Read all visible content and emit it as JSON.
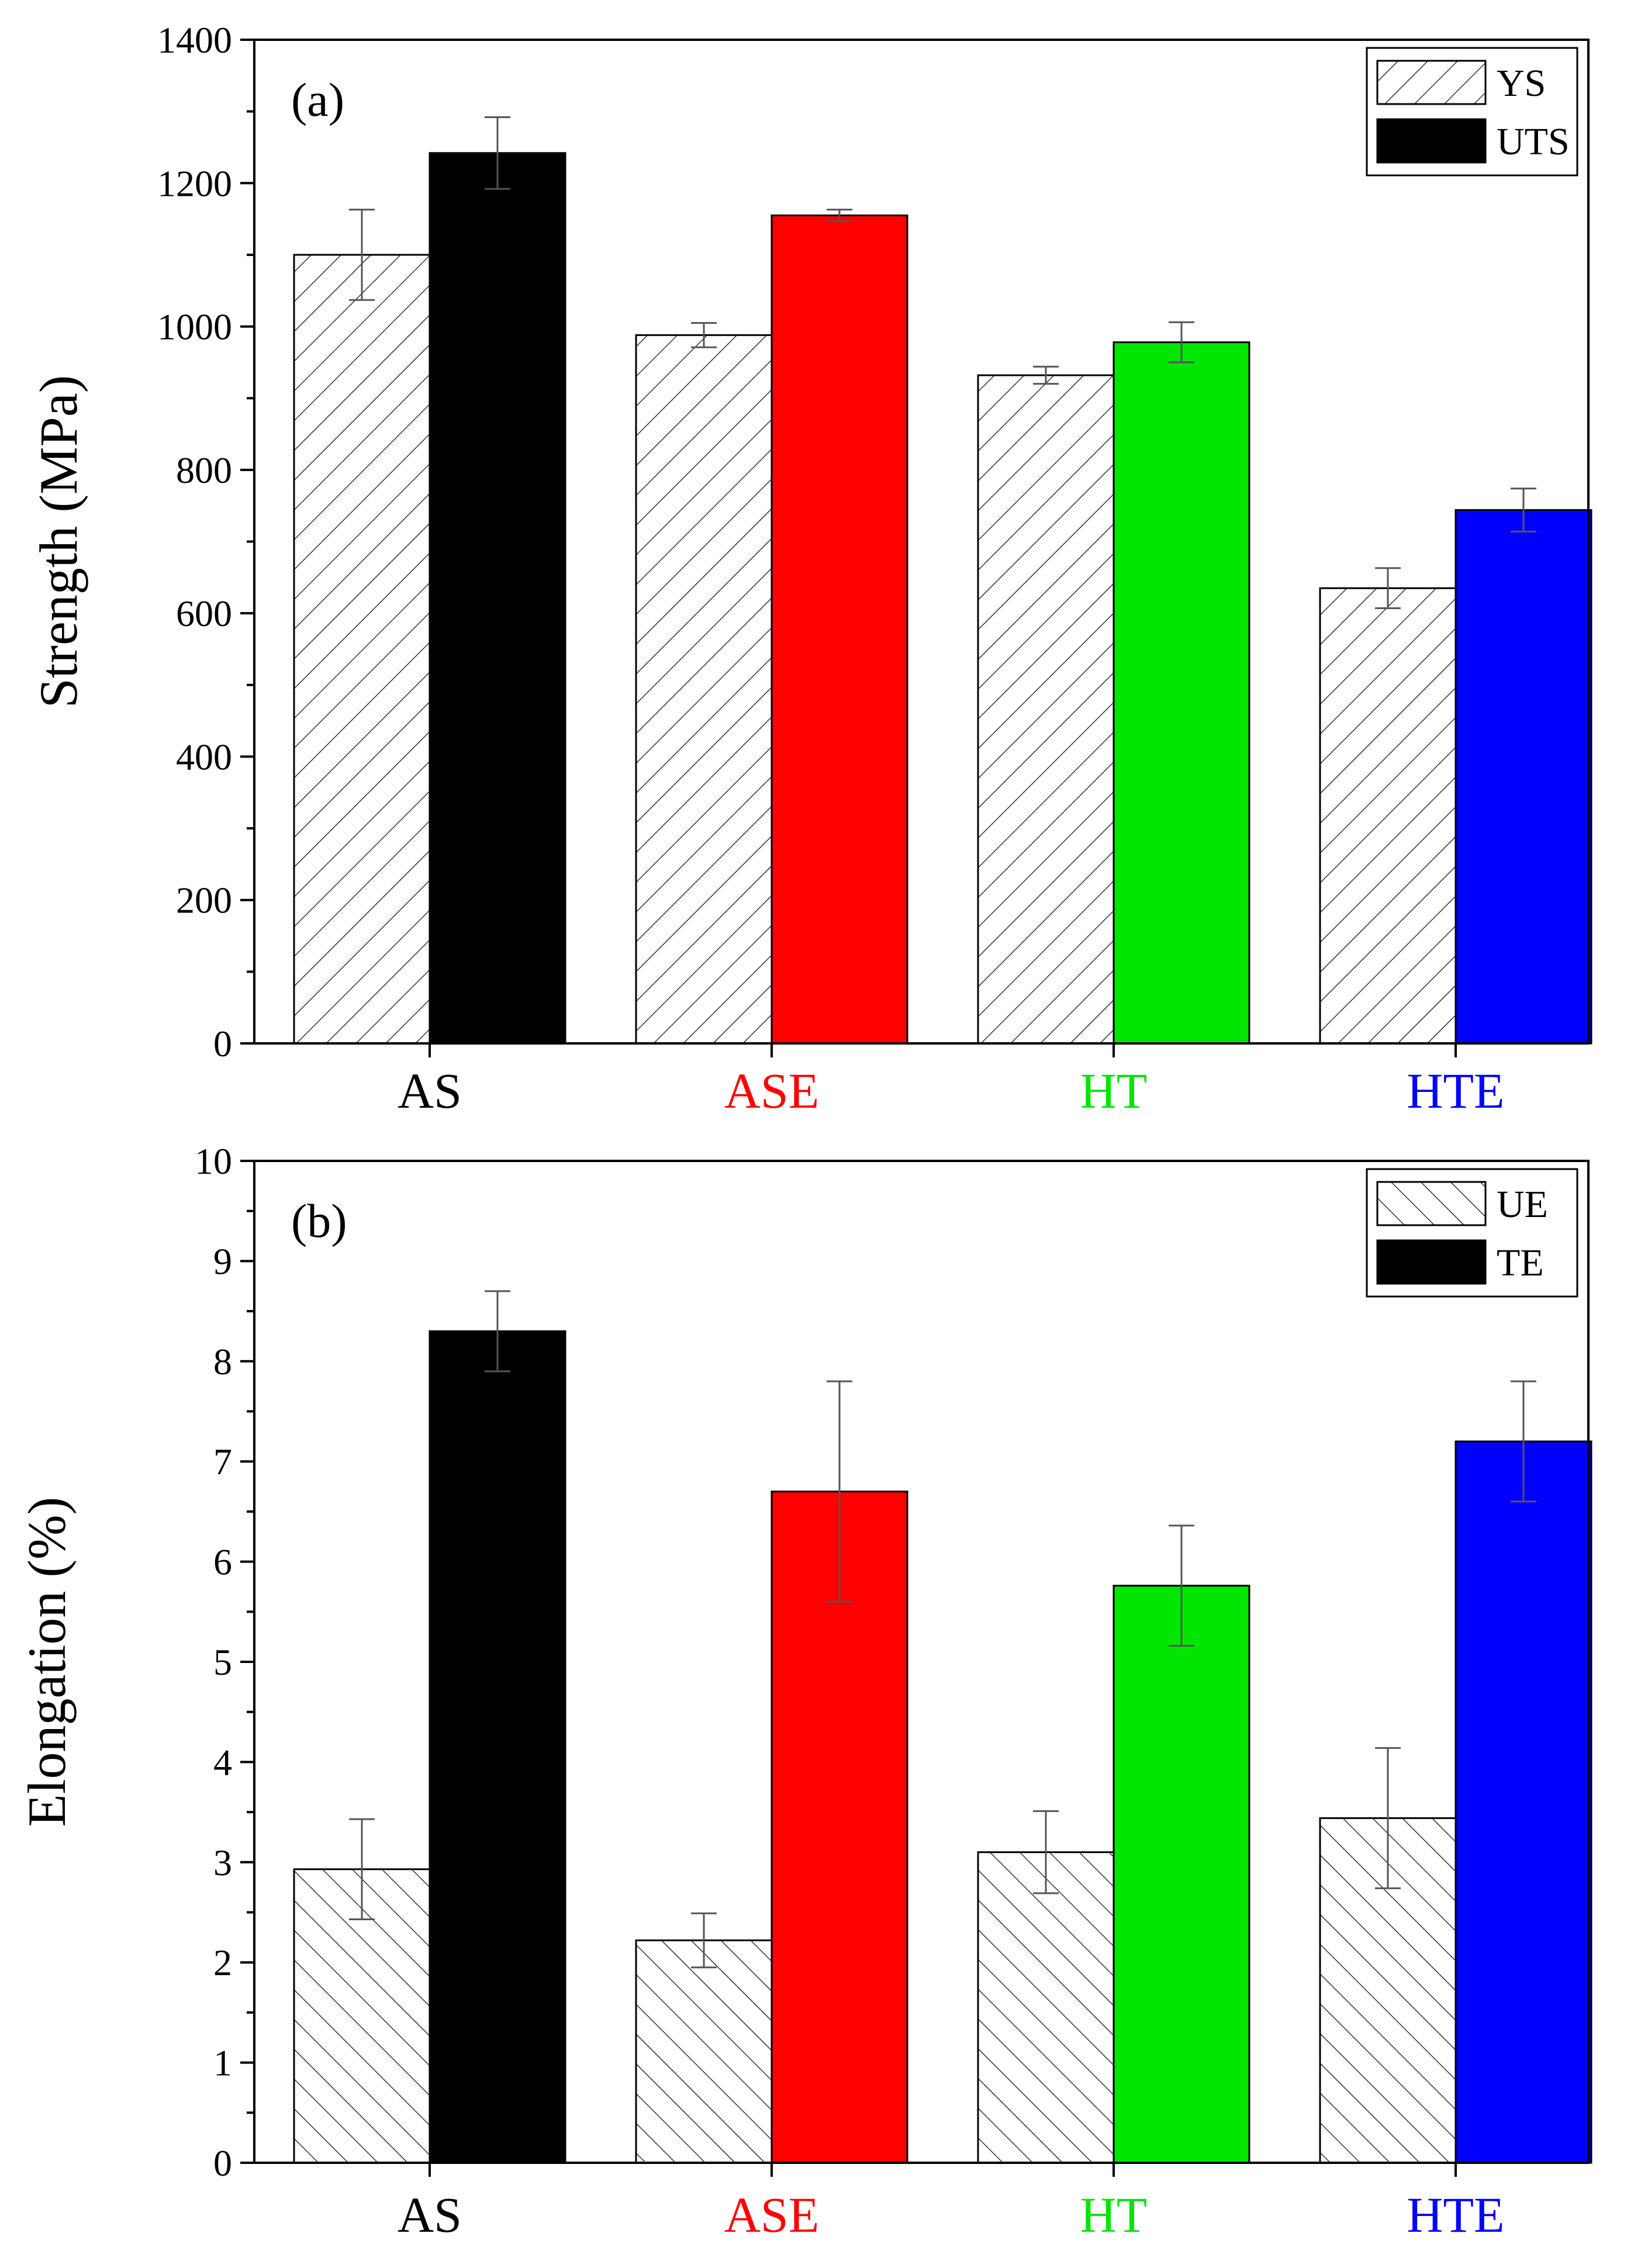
{
  "colors": {
    "axis": "#000000",
    "hatch": "#333333",
    "error_bar": "#555555",
    "bar_edge": "#000000"
  },
  "chart_data": [
    {
      "type": "bar",
      "panel_label": "(a)",
      "ylabel": "Strength (MPa)",
      "xlabel": "",
      "ylim": [
        0,
        1400
      ],
      "yticks": [
        0,
        200,
        400,
        600,
        800,
        1000,
        1200,
        1400
      ],
      "grid": false,
      "legend_position": "top-right",
      "categories": [
        "AS",
        "ASE",
        "HT",
        "HTE"
      ],
      "category_colors": [
        "#000000",
        "#ff0000",
        "#00e600",
        "#0000ff"
      ],
      "series": [
        {
          "name": "YS",
          "style": "hatch-forward",
          "values": [
            1100,
            988,
            932,
            635
          ],
          "errors": [
            63,
            17,
            12,
            28
          ]
        },
        {
          "name": "UTS",
          "style": "solid",
          "values": [
            1242,
            1155,
            978,
            744
          ],
          "errors": [
            50,
            8,
            28,
            30
          ]
        }
      ]
    },
    {
      "type": "bar",
      "panel_label": "(b)",
      "ylabel": "Elongation (%)",
      "xlabel": "",
      "ylim": [
        0,
        10
      ],
      "yticks": [
        0,
        1,
        2,
        3,
        4,
        5,
        6,
        7,
        8,
        9,
        10
      ],
      "grid": false,
      "legend_position": "top-right",
      "categories": [
        "AS",
        "ASE",
        "HT",
        "HTE"
      ],
      "category_colors": [
        "#000000",
        "#ff0000",
        "#00e600",
        "#0000ff"
      ],
      "series": [
        {
          "name": "UE",
          "style": "hatch-backward",
          "values": [
            2.93,
            2.22,
            3.1,
            3.44
          ],
          "errors": [
            0.5,
            0.27,
            0.41,
            0.7
          ]
        },
        {
          "name": "TE",
          "style": "solid",
          "values": [
            8.3,
            6.7,
            5.76,
            7.2
          ],
          "errors": [
            0.4,
            1.1,
            0.6,
            0.6
          ]
        }
      ]
    }
  ]
}
